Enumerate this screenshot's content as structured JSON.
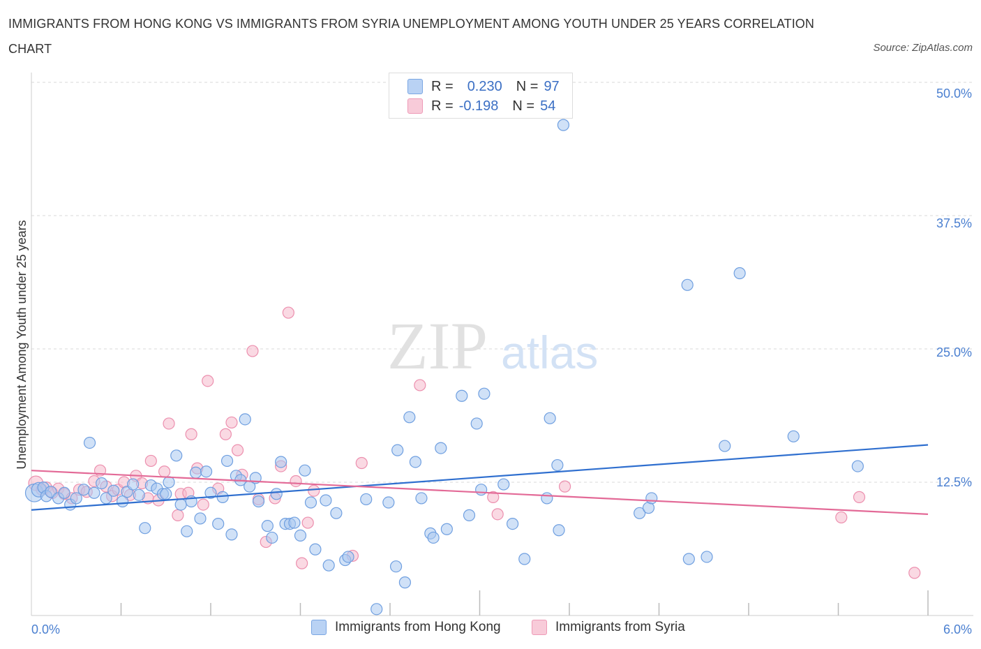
{
  "title": "IMMIGRANTS FROM HONG KONG VS IMMIGRANTS FROM SYRIA UNEMPLOYMENT AMONG YOUTH UNDER 25 YEARS CORRELATION CHART",
  "source": "Source: ZipAtlas.com",
  "watermark": {
    "zip": "ZIP",
    "atlas": "atlas"
  },
  "colors": {
    "blue_fill": "#a9c8f0",
    "blue_stroke": "#6f9fe0",
    "blue_line": "#2f6fcf",
    "pink_fill": "#f5b9cc",
    "pink_stroke": "#ec8fae",
    "pink_line": "#e36a97",
    "grid": "#d9d9d9",
    "axis_label": "#4a7fd0"
  },
  "legend": {
    "rows": [
      {
        "r_label": "R =",
        "r_value": "0.230",
        "n_label": "N =",
        "n_value": "97"
      },
      {
        "r_label": "R =",
        "r_value": "-0.198",
        "n_label": "N =",
        "n_value": "54"
      }
    ]
  },
  "chart_data": {
    "type": "scatter",
    "title": "IMMIGRANTS FROM HONG KONG VS IMMIGRANTS FROM SYRIA UNEMPLOYMENT AMONG YOUTH UNDER 25 YEARS CORRELATION CHART",
    "xlabel": "",
    "ylabel": "Unemployment Among Youth under 25 years",
    "xlim": [
      0,
      6
    ],
    "ylim": [
      0,
      50
    ],
    "x_tick_labels": [
      "0.0%",
      "6.0%"
    ],
    "y_ticks": [
      12.5,
      25.0,
      37.5,
      50.0
    ],
    "y_tick_labels": [
      "12.5%",
      "25.0%",
      "37.5%",
      "50.0%"
    ],
    "grid": "horizontal dashed",
    "legend_position": "top-center",
    "series": [
      {
        "name": "Immigrants from Hong Kong",
        "color": "#a9c8f0",
        "trend": {
          "x": [
            0,
            6
          ],
          "y": [
            9.9,
            16.0
          ]
        },
        "points": [
          [
            0.02,
            11.5,
            1.6
          ],
          [
            0.05,
            11.8,
            1.3
          ],
          [
            0.08,
            12.0,
            1.0
          ],
          [
            0.1,
            11.2,
            1.0
          ],
          [
            0.13,
            11.6,
            1.0
          ],
          [
            0.18,
            11.0,
            1.0
          ],
          [
            0.22,
            11.5,
            1.0
          ],
          [
            0.26,
            10.4,
            1.0
          ],
          [
            0.3,
            11.0,
            1.0
          ],
          [
            0.35,
            11.8,
            1.0
          ],
          [
            0.39,
            16.2,
            1.0
          ],
          [
            0.42,
            11.5,
            1.0
          ],
          [
            0.47,
            12.4,
            1.0
          ],
          [
            0.5,
            11.0,
            1.0
          ],
          [
            0.55,
            11.7,
            1.0
          ],
          [
            0.61,
            10.7,
            1.0
          ],
          [
            0.64,
            11.6,
            1.0
          ],
          [
            0.68,
            12.3,
            1.0
          ],
          [
            0.72,
            11.3,
            1.0
          ],
          [
            0.76,
            8.2,
            1.0
          ],
          [
            0.8,
            12.2,
            1.0
          ],
          [
            0.84,
            11.9,
            1.0
          ],
          [
            0.88,
            11.4,
            1.0
          ],
          [
            0.9,
            11.4,
            1.0
          ],
          [
            0.92,
            12.5,
            1.0
          ],
          [
            0.97,
            15.0,
            1.0
          ],
          [
            1.0,
            10.4,
            1.0
          ],
          [
            1.04,
            7.9,
            1.0
          ],
          [
            1.07,
            10.7,
            1.0
          ],
          [
            1.1,
            13.4,
            1.0
          ],
          [
            1.13,
            9.1,
            1.0
          ],
          [
            1.17,
            13.5,
            1.0
          ],
          [
            1.2,
            11.5,
            1.0
          ],
          [
            1.25,
            8.6,
            1.0
          ],
          [
            1.28,
            11.1,
            1.0
          ],
          [
            1.31,
            14.5,
            1.0
          ],
          [
            1.34,
            7.6,
            1.0
          ],
          [
            1.37,
            13.1,
            1.0
          ],
          [
            1.4,
            12.7,
            1.0
          ],
          [
            1.43,
            18.4,
            1.0
          ],
          [
            1.46,
            12.1,
            1.0
          ],
          [
            1.5,
            12.9,
            1.0
          ],
          [
            1.52,
            10.7,
            1.0
          ],
          [
            1.58,
            8.4,
            1.0
          ],
          [
            1.61,
            7.3,
            1.0
          ],
          [
            1.64,
            11.4,
            1.0
          ],
          [
            1.67,
            14.4,
            1.0
          ],
          [
            1.7,
            8.6,
            1.0
          ],
          [
            1.73,
            8.6,
            1.0
          ],
          [
            1.76,
            8.7,
            1.0
          ],
          [
            1.8,
            7.5,
            1.0
          ],
          [
            1.83,
            13.6,
            1.0
          ],
          [
            1.87,
            10.6,
            1.0
          ],
          [
            1.9,
            6.2,
            1.0
          ],
          [
            1.97,
            10.8,
            1.0
          ],
          [
            1.99,
            4.7,
            1.0
          ],
          [
            2.04,
            9.6,
            1.0
          ],
          [
            2.1,
            5.2,
            1.0
          ],
          [
            2.12,
            5.5,
            1.0
          ],
          [
            2.24,
            10.9,
            1.0
          ],
          [
            2.31,
            0.6,
            1.0
          ],
          [
            2.39,
            10.6,
            1.0
          ],
          [
            2.44,
            4.6,
            1.0
          ],
          [
            2.45,
            15.5,
            1.0
          ],
          [
            2.5,
            3.1,
            1.0
          ],
          [
            2.53,
            18.6,
            1.0
          ],
          [
            2.57,
            14.4,
            1.0
          ],
          [
            2.61,
            11.0,
            1.0
          ],
          [
            2.67,
            7.7,
            1.0
          ],
          [
            2.69,
            7.3,
            1.0
          ],
          [
            2.74,
            15.7,
            1.0
          ],
          [
            2.78,
            8.1,
            1.0
          ],
          [
            2.88,
            20.6,
            1.0
          ],
          [
            2.93,
            9.4,
            1.0
          ],
          [
            2.98,
            18.0,
            1.0
          ],
          [
            3.01,
            11.8,
            1.0
          ],
          [
            3.03,
            20.8,
            1.0
          ],
          [
            3.16,
            12.3,
            1.0
          ],
          [
            3.22,
            8.6,
            1.0
          ],
          [
            3.3,
            5.3,
            1.0
          ],
          [
            3.45,
            11.0,
            1.0
          ],
          [
            3.47,
            18.5,
            1.0
          ],
          [
            3.52,
            14.1,
            1.0
          ],
          [
            3.53,
            8.0,
            1.0
          ],
          [
            3.56,
            46.0,
            1.0
          ],
          [
            4.07,
            9.6,
            1.0
          ],
          [
            4.13,
            10.1,
            1.0
          ],
          [
            4.15,
            11.0,
            1.0
          ],
          [
            4.39,
            31.0,
            1.0
          ],
          [
            4.4,
            5.3,
            1.0
          ],
          [
            4.52,
            5.5,
            1.0
          ],
          [
            4.64,
            15.9,
            1.0
          ],
          [
            4.74,
            32.1,
            1.0
          ],
          [
            5.1,
            16.8,
            1.0
          ],
          [
            5.53,
            14.0,
            1.0
          ]
        ]
      },
      {
        "name": "Immigrants from Syria",
        "color": "#f5b9cc",
        "trend": {
          "x": [
            0,
            6
          ],
          "y": [
            13.6,
            9.5
          ]
        },
        "points": [
          [
            0.03,
            12.4,
            1.3
          ],
          [
            0.07,
            11.8,
            1.0
          ],
          [
            0.1,
            12.0,
            1.0
          ],
          [
            0.14,
            11.5,
            1.0
          ],
          [
            0.18,
            11.9,
            1.0
          ],
          [
            0.22,
            11.4,
            1.0
          ],
          [
            0.27,
            11.0,
            1.0
          ],
          [
            0.32,
            11.8,
            1.0
          ],
          [
            0.37,
            11.6,
            1.0
          ],
          [
            0.42,
            12.6,
            1.0
          ],
          [
            0.46,
            13.6,
            1.0
          ],
          [
            0.5,
            12.1,
            1.0
          ],
          [
            0.54,
            11.2,
            1.0
          ],
          [
            0.58,
            11.8,
            1.0
          ],
          [
            0.62,
            12.5,
            1.0
          ],
          [
            0.66,
            11.3,
            1.0
          ],
          [
            0.7,
            13.1,
            1.0
          ],
          [
            0.74,
            12.4,
            1.0
          ],
          [
            0.78,
            11.0,
            1.0
          ],
          [
            0.8,
            14.5,
            1.0
          ],
          [
            0.85,
            10.8,
            1.0
          ],
          [
            0.89,
            13.5,
            1.0
          ],
          [
            0.92,
            18.0,
            1.0
          ],
          [
            0.98,
            9.4,
            1.0
          ],
          [
            1.0,
            11.4,
            1.0
          ],
          [
            1.05,
            11.5,
            1.0
          ],
          [
            1.07,
            17.0,
            1.0
          ],
          [
            1.11,
            13.8,
            1.0
          ],
          [
            1.15,
            10.4,
            1.0
          ],
          [
            1.18,
            22.0,
            1.0
          ],
          [
            1.25,
            11.9,
            1.0
          ],
          [
            1.3,
            17.0,
            1.0
          ],
          [
            1.34,
            18.1,
            1.0
          ],
          [
            1.38,
            15.5,
            1.0
          ],
          [
            1.41,
            13.2,
            1.0
          ],
          [
            1.48,
            24.8,
            1.0
          ],
          [
            1.52,
            10.9,
            1.0
          ],
          [
            1.57,
            6.9,
            1.0
          ],
          [
            1.63,
            11.0,
            1.0
          ],
          [
            1.67,
            14.0,
            1.0
          ],
          [
            1.72,
            28.4,
            1.0
          ],
          [
            1.77,
            12.6,
            1.0
          ],
          [
            1.81,
            4.9,
            1.0
          ],
          [
            1.85,
            8.7,
            1.0
          ],
          [
            1.89,
            11.7,
            1.0
          ],
          [
            2.15,
            5.6,
            1.0
          ],
          [
            2.21,
            14.3,
            1.0
          ],
          [
            2.6,
            21.6,
            1.0
          ],
          [
            3.09,
            11.1,
            1.0
          ],
          [
            3.12,
            9.5,
            1.0
          ],
          [
            3.57,
            12.1,
            1.0
          ],
          [
            5.42,
            9.2,
            1.0
          ],
          [
            5.54,
            11.1,
            1.0
          ],
          [
            5.91,
            4.0,
            1.0
          ]
        ]
      }
    ]
  },
  "bottom_legend": [
    {
      "label": "Immigrants from Hong Kong"
    },
    {
      "label": "Immigrants from Syria"
    }
  ]
}
